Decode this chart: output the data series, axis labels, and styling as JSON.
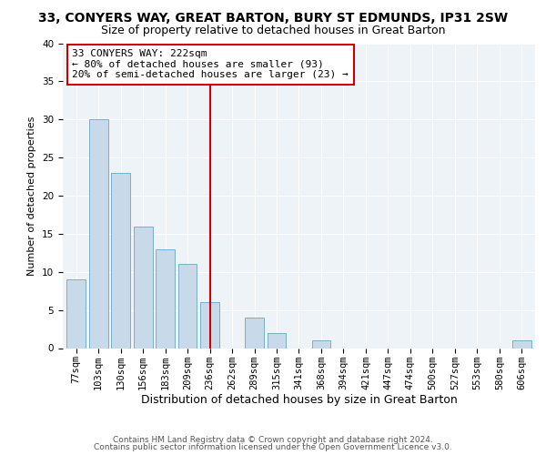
{
  "title": "33, CONYERS WAY, GREAT BARTON, BURY ST EDMUNDS, IP31 2SW",
  "subtitle": "Size of property relative to detached houses in Great Barton",
  "xlabel": "Distribution of detached houses by size in Great Barton",
  "ylabel": "Number of detached properties",
  "categories": [
    "77sqm",
    "103sqm",
    "130sqm",
    "156sqm",
    "183sqm",
    "209sqm",
    "236sqm",
    "262sqm",
    "289sqm",
    "315sqm",
    "341sqm",
    "368sqm",
    "394sqm",
    "421sqm",
    "447sqm",
    "474sqm",
    "500sqm",
    "527sqm",
    "553sqm",
    "580sqm",
    "606sqm"
  ],
  "values": [
    9,
    30,
    23,
    16,
    13,
    11,
    6,
    0,
    4,
    2,
    0,
    1,
    0,
    0,
    0,
    0,
    0,
    0,
    0,
    0,
    1
  ],
  "bar_color": "#c8d9ea",
  "bar_edge_color": "#7aafc8",
  "vline_x": 6,
  "vline_color": "#cc0000",
  "annotation_line1": "33 CONYERS WAY: 222sqm",
  "annotation_line2": "← 80% of detached houses are smaller (93)",
  "annotation_line3": "20% of semi-detached houses are larger (23) →",
  "annotation_box_color": "#ffffff",
  "annotation_box_edge_color": "#cc0000",
  "ylim": [
    0,
    40
  ],
  "yticks": [
    0,
    5,
    10,
    15,
    20,
    25,
    30,
    35,
    40
  ],
  "footer1": "Contains HM Land Registry data © Crown copyright and database right 2024.",
  "footer2": "Contains public sector information licensed under the Open Government Licence v3.0.",
  "background_color": "#eef3f8",
  "grid_color": "#ffffff",
  "title_fontsize": 10,
  "subtitle_fontsize": 9,
  "xlabel_fontsize": 9,
  "ylabel_fontsize": 8,
  "tick_fontsize": 7.5,
  "footer_fontsize": 6.5,
  "annotation_fontsize": 8
}
